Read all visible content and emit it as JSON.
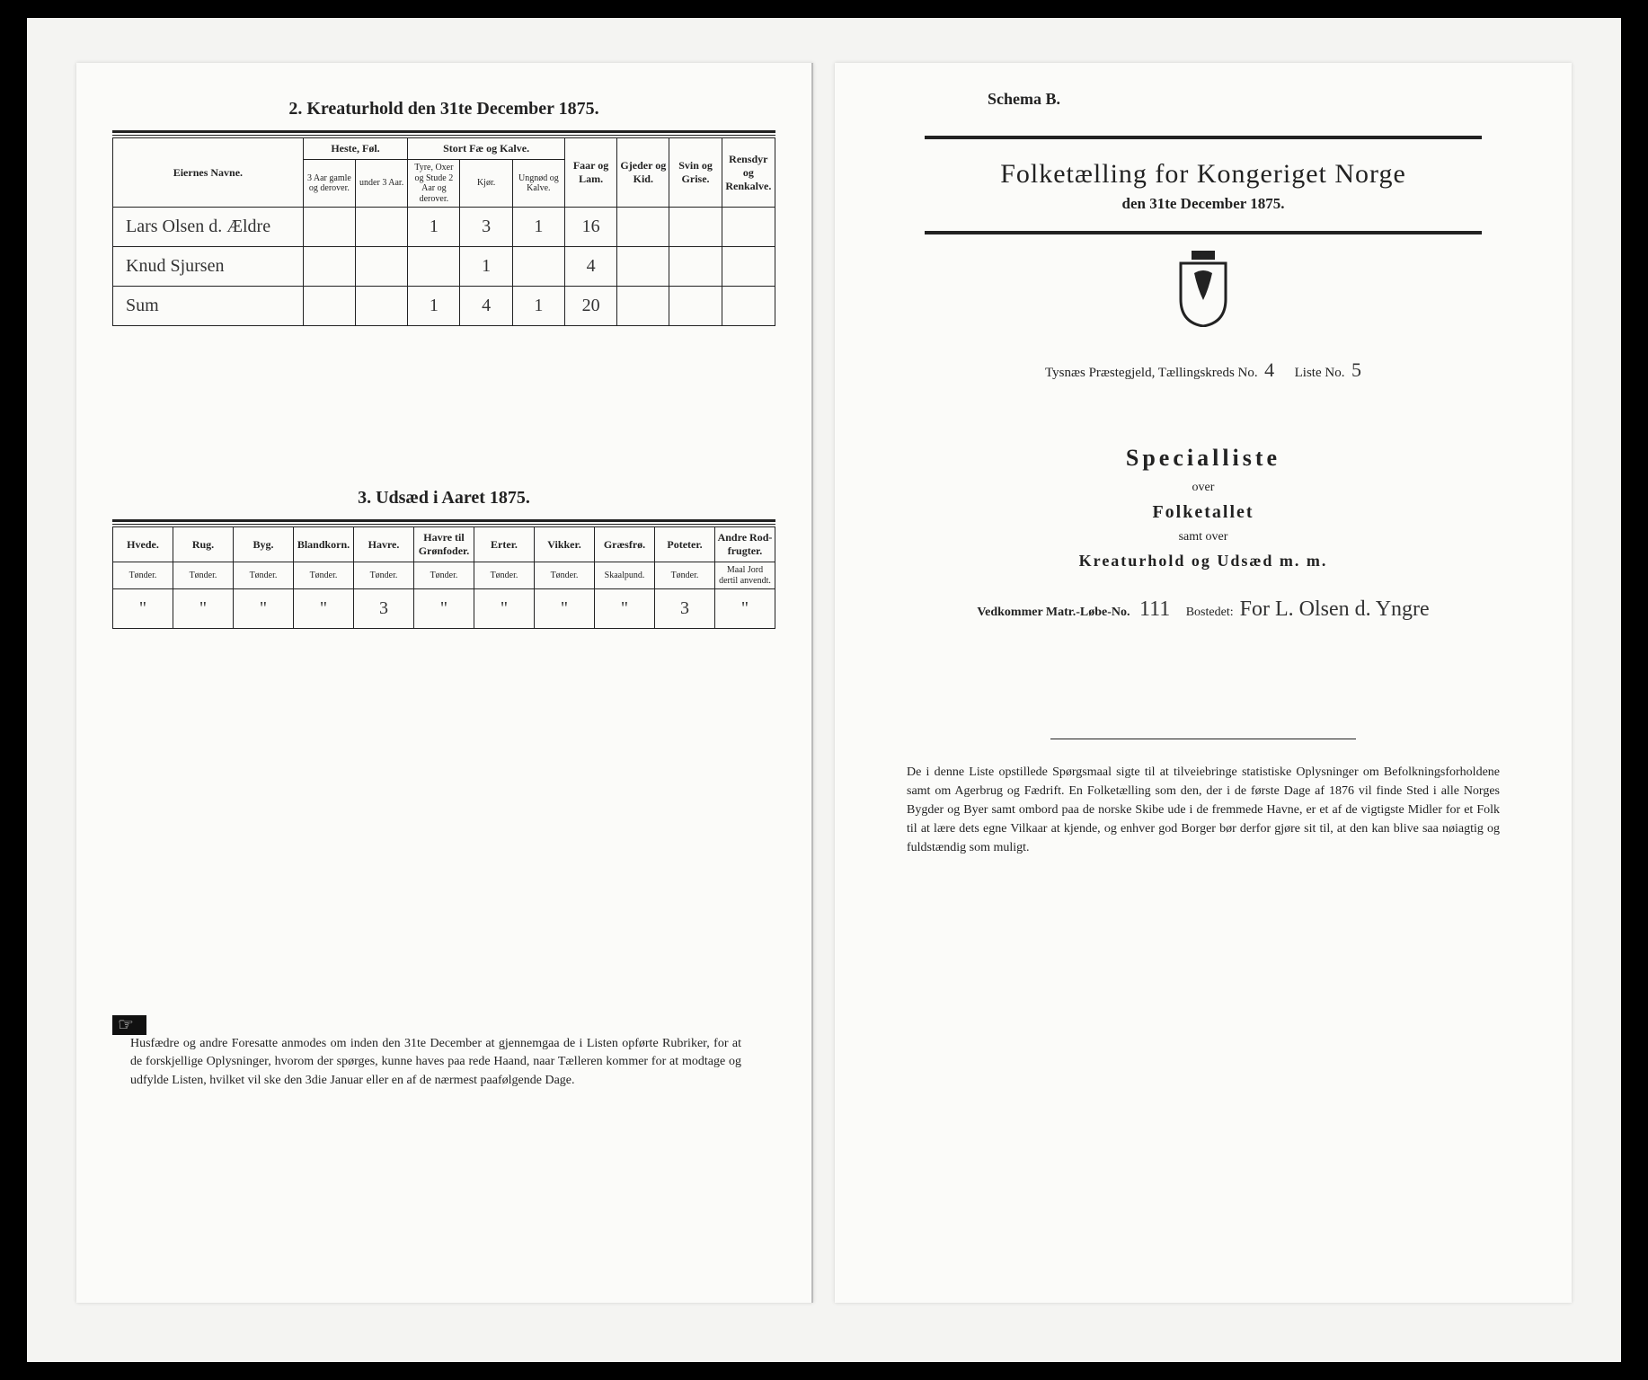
{
  "left": {
    "section2_title": "2.  Kreaturhold den 31te December 1875.",
    "table1": {
      "head_eier": "Eiernes Navne.",
      "grp_heste": "Heste, Føl.",
      "grp_stort": "Stort Fæ og Kalve.",
      "col_faar": "Faar og Lam.",
      "col_gjed": "Gjeder og Kid.",
      "col_svin": "Svin og Grise.",
      "col_rens": "Rensdyr og Renkalve.",
      "sub_h1": "3 Aar gamle og derover.",
      "sub_h2": "under 3 Aar.",
      "sub_s1": "Tyre, Oxer og Stude 2 Aar og derover.",
      "sub_s2": "Kjør.",
      "sub_s3": "Ungnød og Kalve.",
      "rows": [
        {
          "name": "Lars Olsen d. Ældre",
          "v": [
            "",
            "",
            "1",
            "3",
            "1",
            "16",
            "",
            "",
            ""
          ]
        },
        {
          "name": "Knud Sjursen",
          "v": [
            "",
            "",
            "",
            "1",
            "",
            "4",
            "",
            "",
            ""
          ]
        },
        {
          "name": "Sum",
          "v": [
            "",
            "",
            "1",
            "4",
            "1",
            "20",
            "",
            "",
            ""
          ]
        }
      ]
    },
    "section3_title": "3.  Udsæd i Aaret 1875.",
    "table2": {
      "cols": [
        {
          "h": "Hvede.",
          "s": "Tønder."
        },
        {
          "h": "Rug.",
          "s": "Tønder."
        },
        {
          "h": "Byg.",
          "s": "Tønder."
        },
        {
          "h": "Blandkorn.",
          "s": "Tønder."
        },
        {
          "h": "Havre.",
          "s": "Tønder."
        },
        {
          "h": "Havre til Grønfoder.",
          "s": "Tønder."
        },
        {
          "h": "Erter.",
          "s": "Tønder."
        },
        {
          "h": "Vikker.",
          "s": "Tønder."
        },
        {
          "h": "Græsfrø.",
          "s": "Skaalpund."
        },
        {
          "h": "Poteter.",
          "s": "Tønder."
        },
        {
          "h": "Andre Rod-frugter.",
          "s": "Maal Jord dertil anvendt."
        }
      ],
      "row": [
        "\"",
        "\"",
        "\"",
        "\"",
        "3",
        "\"",
        "\"",
        "\"",
        "\"",
        "3",
        "\""
      ]
    },
    "footnote": "Husfædre og andre Foresatte anmodes om inden den 31te December at gjennemgaa de i Listen opførte Rubriker, for at de forskjellige Oplysninger, hvorom der spørges, kunne haves paa rede Haand, naar Tælleren kommer for at modtage og udfylde Listen, hvilket vil ske den 3die Januar eller en af de nærmest paafølgende Dage."
  },
  "right": {
    "schema": "Schema B.",
    "title": "Folketælling for Kongeriget Norge",
    "subtitle": "den 31te December 1875.",
    "kreds_left": "Tysnæs  Præstegjeld, Tællingskreds No.",
    "kreds_no": "4",
    "kreds_right": "Liste No.",
    "liste_no": "5",
    "special": "Specialliste",
    "over": "over",
    "folketal": "Folketallet",
    "samt": "samt over",
    "kreatur": "Kreaturhold og Udsæd m. m.",
    "vedk_label": "Vedkommer Matr.-Løbe-No.",
    "matr_no": "111",
    "vedk_bosted": "Bostedet:",
    "bosted": "For L. Olsen d. Yngre",
    "footnote": "De i denne Liste opstillede Spørgsmaal sigte til at tilveiebringe statistiske Oplysninger om Befolkningsforholdene samt om Agerbrug og Fædrift.  En Folketælling som den, der i de første Dage af 1876 vil finde Sted i alle Norges Bygder og Byer samt ombord paa de norske Skibe ude i de fremmede Havne, er et af de vigtigste Midler for et Folk til at lære dets egne Vilkaar at kjende, og enhver god Borger bør derfor gjøre sit til, at den kan blive saa nøiagtig og fuldstændig som muligt."
  }
}
